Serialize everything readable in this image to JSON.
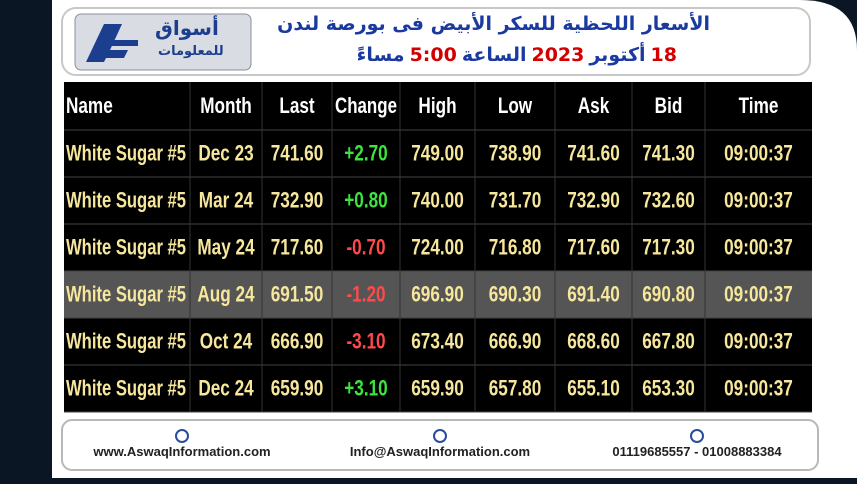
{
  "header": {
    "logo": {
      "name": "أسواق",
      "subtitle": "للمعلومات"
    },
    "title": "الأسعار اللحظية للسكر الأبيض فى بورصة لندن",
    "subtitle_parts": [
      {
        "text": "18",
        "color": "#d40000"
      },
      {
        "text": "أكتوبر",
        "color": "#1a3aa0"
      },
      {
        "text": "2023",
        "color": "#d40000"
      },
      {
        "text": "الساعة",
        "color": "#1a3aa0"
      },
      {
        "text": "5:00",
        "color": "#d40000"
      },
      {
        "text": "مساءً",
        "color": "#1a3aa0"
      }
    ]
  },
  "table": {
    "columns": [
      "Name",
      "Month",
      "Last",
      "Change",
      "High",
      "Low",
      "Ask",
      "Bid",
      "Time"
    ],
    "rows": [
      [
        "White Sugar #5",
        "Dec 23",
        "741.60",
        "+2.70",
        "749.00",
        "738.90",
        "741.60",
        "741.30",
        "09:00:37"
      ],
      [
        "White Sugar #5",
        "Mar 24",
        "732.90",
        "+0.80",
        "740.00",
        "731.70",
        "732.90",
        "732.60",
        "09:00:37"
      ],
      [
        "White Sugar #5",
        "May 24",
        "717.60",
        "-0.70",
        "724.00",
        "716.80",
        "717.60",
        "717.30",
        "09:00:37"
      ],
      [
        "White Sugar #5",
        "Aug 24",
        "691.50",
        "-1.20",
        "696.90",
        "690.30",
        "691.40",
        "690.80",
        "09:00:37"
      ],
      [
        "White Sugar #5",
        "Oct 24",
        "666.90",
        "-3.10",
        "673.40",
        "666.90",
        "668.60",
        "667.80",
        "09:00:37"
      ],
      [
        "White Sugar #5",
        "Dec 24",
        "659.90",
        "+3.10",
        "659.90",
        "657.80",
        "655.10",
        "653.30",
        "09:00:37"
      ]
    ],
    "highlighted_row": 3
  },
  "footer": {
    "website": "www.AswaqInformation.com",
    "email": "Info@AswaqInformation.com",
    "phones": "01119685557 - 01008883384"
  }
}
